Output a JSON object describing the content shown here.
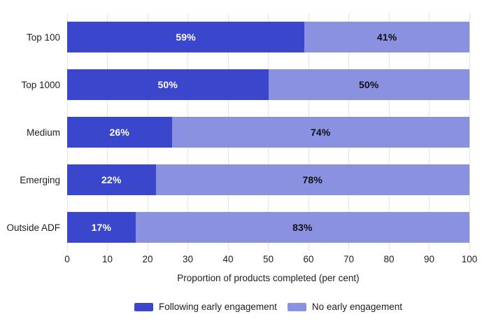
{
  "chart_data": {
    "type": "bar",
    "orientation": "horizontal",
    "stacked": true,
    "categories": [
      "Top 100",
      "Top 1000",
      "Medium",
      "Emerging",
      "Outside ADF"
    ],
    "series": [
      {
        "name": "Following early engagement",
        "color": "#3a46cb",
        "label_color": "#ffffff",
        "values": [
          59,
          50,
          26,
          22,
          17
        ]
      },
      {
        "name": "No early engagement",
        "color": "#8b91e1",
        "label_color": "#111111",
        "values": [
          41,
          50,
          74,
          78,
          83
        ]
      }
    ],
    "value_suffix": "%",
    "xlabel": "Proportion of products completed (per cent)",
    "xlim": [
      0,
      100
    ],
    "xticks": [
      0,
      10,
      20,
      30,
      40,
      50,
      60,
      70,
      80,
      90,
      100
    ],
    "grid": true,
    "gridline_color": "#e3e3e5",
    "legend_position": "bottom",
    "background": "#ffffff"
  }
}
